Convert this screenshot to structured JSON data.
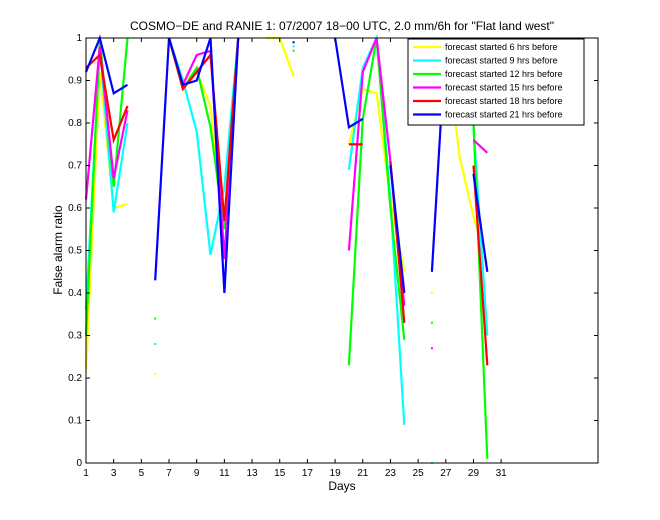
{
  "chart_data": {
    "type": "line",
    "title": "COSMO−DE and RANIE 1: 07/2007 18−00 UTC, 2.0 mm/6h for \"Flat land west\"",
    "xlabel": "Days",
    "ylabel": "False alarm ratio",
    "xlim": [
      1,
      38
    ],
    "ylim": [
      0,
      1
    ],
    "xticks": [
      "1",
      "3",
      "5",
      "7",
      "9",
      "11",
      "13",
      "15",
      "17",
      "19",
      "21",
      "23",
      "25",
      "27",
      "29",
      "31"
    ],
    "yticks": [
      "0",
      "0.1",
      "0.2",
      "0.3",
      "0.4",
      "0.5",
      "0.6",
      "0.7",
      "0.8",
      "0.9",
      "1"
    ],
    "legend_position": "top-right",
    "grid": false,
    "series": [
      {
        "name": "forecast started 6 hrs before",
        "color": "#ffff00",
        "segments": [
          [
            [
              1,
              0.22
            ],
            [
              2,
              0.92
            ],
            [
              3,
              0.6
            ],
            [
              4,
              0.61
            ]
          ],
          [
            [
              7,
              1.0
            ],
            [
              8,
              0.9
            ],
            [
              9,
              0.92
            ],
            [
              10,
              0.84
            ],
            [
              11,
              0.55
            ],
            [
              12,
              1.0
            ]
          ],
          [
            [
              14,
              1.0
            ],
            [
              15,
              1.0
            ],
            [
              16,
              0.91
            ]
          ],
          [
            [
              20,
              0.75
            ],
            [
              21,
              0.88
            ],
            [
              22,
              0.87
            ],
            [
              23,
              0.62
            ],
            [
              24,
              0.45
            ]
          ],
          [
            [
              27,
              1.0
            ],
            [
              28,
              0.72
            ],
            [
              29,
              0.58
            ],
            [
              30,
              0.47
            ]
          ]
        ],
        "points": [
          [
            6,
            0.21
          ],
          [
            26,
            0.4
          ]
        ]
      },
      {
        "name": "forecast started 9 hrs before",
        "color": "#00ffff",
        "segments": [
          [
            [
              1,
              0.36
            ],
            [
              2,
              0.98
            ],
            [
              3,
              0.59
            ],
            [
              4,
              0.8
            ]
          ],
          [
            [
              7,
              1.0
            ],
            [
              8,
              0.9
            ],
            [
              9,
              0.78
            ],
            [
              10,
              0.49
            ],
            [
              11,
              0.65
            ],
            [
              12,
              1.0
            ]
          ],
          [
            [
              20,
              0.69
            ],
            [
              21,
              0.93
            ],
            [
              22,
              1.0
            ],
            [
              23,
              0.62
            ],
            [
              24,
              0.09
            ]
          ],
          [
            [
              29,
              0.79
            ],
            [
              30,
              0.3
            ]
          ]
        ],
        "points": [
          [
            6,
            0.28
          ],
          [
            16,
            0.98
          ],
          [
            26,
            0.0
          ]
        ]
      },
      {
        "name": "forecast started 12 hrs before",
        "color": "#00ff00",
        "segments": [
          [
            [
              1,
              0.3
            ],
            [
              2,
              1.0
            ],
            [
              3,
              0.65
            ],
            [
              4,
              1.0
            ]
          ],
          [
            [
              7,
              1.0
            ],
            [
              8,
              0.88
            ],
            [
              9,
              0.93
            ],
            [
              10,
              0.79
            ],
            [
              11,
              0.55
            ],
            [
              12,
              1.0
            ]
          ],
          [
            [
              20,
              0.23
            ],
            [
              21,
              0.81
            ],
            [
              22,
              1.0
            ],
            [
              23,
              0.6
            ],
            [
              24,
              0.29
            ]
          ],
          [
            [
              29,
              0.8
            ],
            [
              30,
              0.01
            ]
          ]
        ],
        "points": [
          [
            6,
            0.34
          ],
          [
            16,
            0.97
          ],
          [
            26,
            0.33
          ]
        ]
      },
      {
        "name": "forecast started 15 hrs before",
        "color": "#ff00ff",
        "segments": [
          [
            [
              1,
              0.62
            ],
            [
              2,
              0.98
            ],
            [
              3,
              0.67
            ],
            [
              4,
              0.83
            ]
          ],
          [
            [
              7,
              1.0
            ],
            [
              8,
              0.89
            ],
            [
              9,
              0.96
            ],
            [
              10,
              0.97
            ],
            [
              11,
              0.48
            ],
            [
              12,
              1.0
            ]
          ],
          [
            [
              20,
              0.5
            ],
            [
              21,
              0.92
            ],
            [
              22,
              1.0
            ],
            [
              23,
              0.71
            ],
            [
              24,
              0.37
            ]
          ],
          [
            [
              29,
              0.76
            ],
            [
              30,
              0.73
            ]
          ]
        ],
        "points": [
          [
            26,
            0.27
          ]
        ]
      },
      {
        "name": "forecast started 18 hrs before",
        "color": "#ff0000",
        "segments": [
          [
            [
              1,
              0.93
            ],
            [
              2,
              0.96
            ],
            [
              3,
              0.76
            ],
            [
              4,
              0.84
            ]
          ],
          [
            [
              7,
              1.0
            ],
            [
              8,
              0.88
            ],
            [
              9,
              0.92
            ],
            [
              10,
              0.96
            ],
            [
              11,
              0.57
            ],
            [
              12,
              1.0
            ]
          ],
          [
            [
              20,
              0.75
            ],
            [
              21,
              0.75
            ]
          ],
          [
            [
              23,
              0.71
            ],
            [
              24,
              0.33
            ]
          ],
          [
            [
              29,
              0.7
            ],
            [
              30,
              0.23
            ]
          ]
        ],
        "points": []
      },
      {
        "name": "forecast started 21 hrs before",
        "color": "#0000ff",
        "segments": [
          [
            [
              1,
              0.92
            ],
            [
              2,
              1.0
            ],
            [
              3,
              0.87
            ],
            [
              4,
              0.89
            ]
          ],
          [
            [
              6,
              0.43
            ],
            [
              7,
              1.0
            ],
            [
              8,
              0.89
            ],
            [
              9,
              0.9
            ],
            [
              10,
              1.0
            ],
            [
              11,
              0.4
            ],
            [
              12,
              1.0
            ]
          ],
          [
            [
              19,
              1.0
            ],
            [
              20,
              0.79
            ],
            [
              21,
              0.81
            ]
          ],
          [
            [
              23,
              0.7
            ],
            [
              24,
              0.4
            ]
          ],
          [
            [
              26,
              0.45
            ],
            [
              27,
              1.0
            ]
          ],
          [
            [
              29,
              0.68
            ],
            [
              30,
              0.45
            ]
          ]
        ],
        "points": [
          [
            16,
            0.99
          ]
        ]
      }
    ]
  }
}
